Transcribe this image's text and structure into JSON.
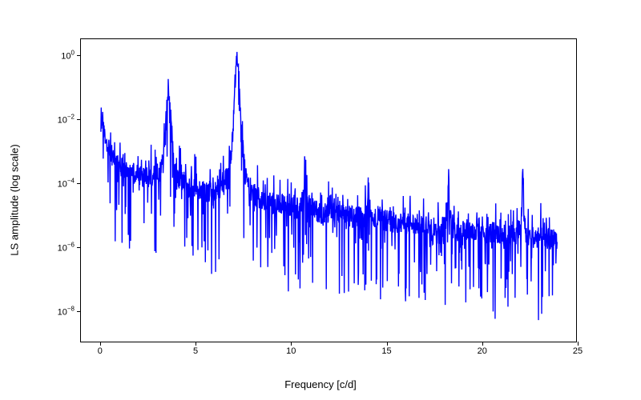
{
  "chart": {
    "type": "line",
    "xlabel": "Frequency [c/d]",
    "ylabel": "LS amplitude (log scale)",
    "xlim": [
      -1,
      25
    ],
    "ylim_log": [
      -9,
      0.5
    ],
    "xticks": [
      0,
      5,
      10,
      15,
      20,
      25
    ],
    "yticks_exp": [
      -8,
      -6,
      -4,
      -2,
      0
    ],
    "yscale": "log",
    "line_color": "#0000ff",
    "line_width": 1.4,
    "background_color": "#ffffff",
    "border_color": "#000000",
    "tick_fontsize": 11,
    "label_fontsize": 13,
    "series": {
      "x_start": 0.05,
      "x_end": 24,
      "n_points": 1600,
      "peaks": [
        {
          "freq": 0.1,
          "log_amp": -2.1,
          "width": 0.25
        },
        {
          "freq": 3.6,
          "log_amp": -1.2,
          "width": 0.18
        },
        {
          "freq": 7.2,
          "log_amp": -0.05,
          "width": 0.22
        },
        {
          "freq": 10.8,
          "log_amp": -3.3,
          "width": 0.08
        },
        {
          "freq": 14.1,
          "log_amp": -4.1,
          "width": 0.06
        },
        {
          "freq": 18.3,
          "log_amp": -4.0,
          "width": 0.05
        },
        {
          "freq": 22.2,
          "log_amp": -3.8,
          "width": 0.05
        }
      ],
      "baseline_start_log": -3.0,
      "baseline_end_log": -5.8,
      "noise_amplitude_log": 2.6,
      "noise_floor_log": -8.8
    }
  }
}
